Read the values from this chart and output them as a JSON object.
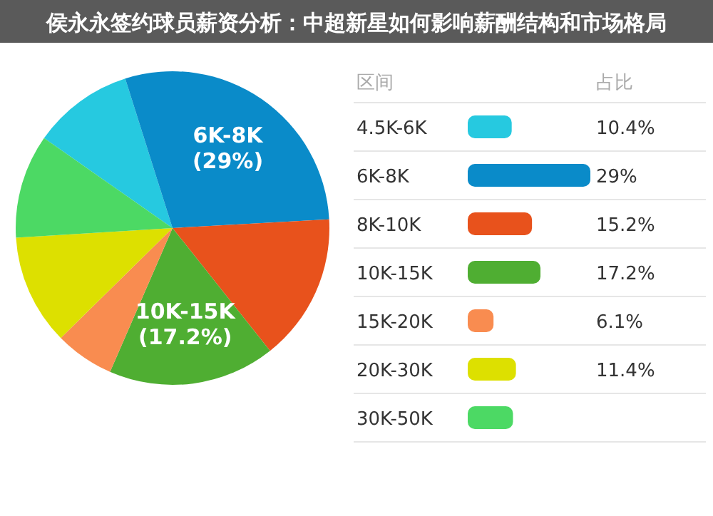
{
  "chart_data": {
    "type": "pie",
    "title": "侯永永签约球员薪资分析：中超新星如何影响薪酬结构和市场格局",
    "categories": [
      "4.5K-6K",
      "6K-8K",
      "8K-10K",
      "10K-15K",
      "15K-20K",
      "20K-30K",
      "30K-50K"
    ],
    "values": [
      10.4,
      29,
      15.2,
      17.2,
      6.1,
      11.4,
      10.7
    ],
    "colors": [
      "#26c9e0",
      "#0a8bc9",
      "#e8521c",
      "#4fae32",
      "#f98c50",
      "#dde000",
      "#4cd964"
    ],
    "legend": "right",
    "annotations": [
      "区间",
      "占比",
      "10.4%",
      "29%",
      "15.2%",
      "17.2%",
      "6.1%",
      "11.4%",
      {
        "text": "6K-8K (29%)",
        "x": "6K-8K"
      },
      {
        "text": "10K-15K (17.2%)",
        "x": "10K-15K"
      }
    ]
  }
}
